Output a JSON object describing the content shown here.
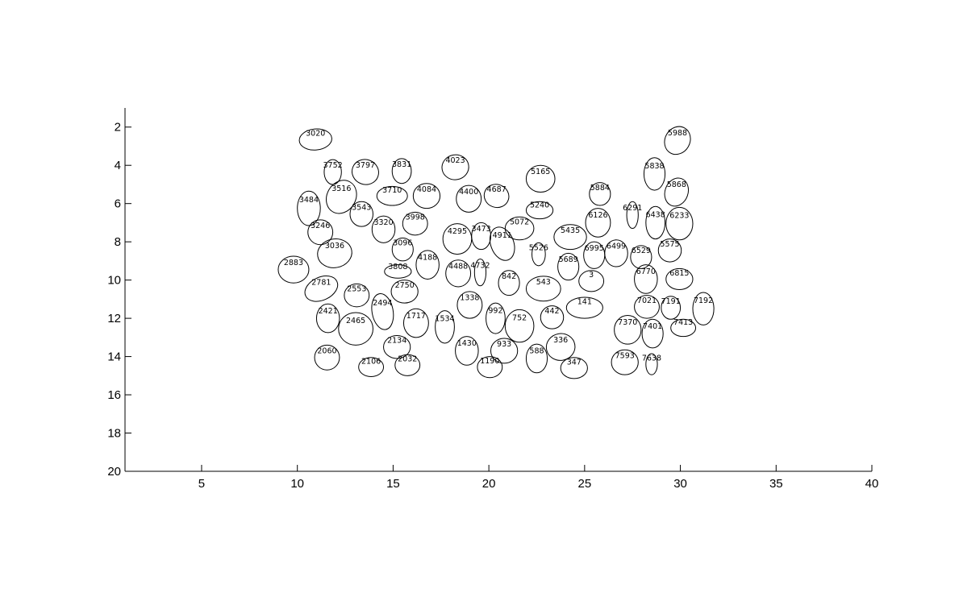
{
  "chart_data": {
    "type": "scatter",
    "title": "",
    "xlabel": "",
    "ylabel": "",
    "xlim": [
      1,
      40
    ],
    "ylim": [
      1,
      20
    ],
    "y_reversed": true,
    "grid": false,
    "x_ticks": [
      5,
      10,
      15,
      20,
      25,
      30,
      35,
      40
    ],
    "y_ticks": [
      2,
      4,
      6,
      8,
      10,
      12,
      14,
      16,
      18,
      20
    ],
    "x_tick_labels": [
      "5",
      "10",
      "15",
      "20",
      "25",
      "30",
      "35",
      "40"
    ],
    "y_tick_labels": [
      "2",
      "4",
      "6",
      "8",
      "10",
      "12",
      "14",
      "16",
      "18",
      "20"
    ],
    "ellipses": [
      {
        "label": "3020",
        "x": 10.95,
        "y": 2.65,
        "rx": 0.85,
        "ry": 0.55,
        "angle": -5
      },
      {
        "label": "5988",
        "x": 29.85,
        "y": 2.7,
        "rx": 0.65,
        "ry": 0.75,
        "angle": 30
      },
      {
        "label": "3752",
        "x": 11.85,
        "y": 4.35,
        "rx": 0.45,
        "ry": 0.65,
        "angle": 0
      },
      {
        "label": "3797",
        "x": 13.55,
        "y": 4.35,
        "rx": 0.7,
        "ry": 0.65,
        "angle": 20
      },
      {
        "label": "3831",
        "x": 15.45,
        "y": 4.3,
        "rx": 0.5,
        "ry": 0.65,
        "angle": 0
      },
      {
        "label": "4023",
        "x": 18.25,
        "y": 4.1,
        "rx": 0.7,
        "ry": 0.65,
        "angle": -10
      },
      {
        "label": "5165",
        "x": 22.7,
        "y": 4.7,
        "rx": 0.75,
        "ry": 0.7,
        "angle": 0
      },
      {
        "label": "5838",
        "x": 28.65,
        "y": 4.45,
        "rx": 0.55,
        "ry": 0.85,
        "angle": 0
      },
      {
        "label": "3516",
        "x": 12.3,
        "y": 5.65,
        "rx": 0.75,
        "ry": 0.9,
        "angle": 30
      },
      {
        "label": "3710",
        "x": 14.95,
        "y": 5.6,
        "rx": 0.8,
        "ry": 0.5,
        "angle": 0
      },
      {
        "label": "4084",
        "x": 16.75,
        "y": 5.6,
        "rx": 0.7,
        "ry": 0.65,
        "angle": 0
      },
      {
        "label": "4400",
        "x": 18.95,
        "y": 5.75,
        "rx": 0.65,
        "ry": 0.7,
        "angle": 0
      },
      {
        "label": "4687",
        "x": 20.4,
        "y": 5.6,
        "rx": 0.65,
        "ry": 0.6,
        "angle": 20
      },
      {
        "label": "5884",
        "x": 25.8,
        "y": 5.5,
        "rx": 0.55,
        "ry": 0.6,
        "angle": 0
      },
      {
        "label": "5868",
        "x": 29.8,
        "y": 5.4,
        "rx": 0.6,
        "ry": 0.75,
        "angle": 20
      },
      {
        "label": "3484",
        "x": 10.6,
        "y": 6.25,
        "rx": 0.6,
        "ry": 0.9,
        "angle": 0
      },
      {
        "label": "3543",
        "x": 13.35,
        "y": 6.55,
        "rx": 0.6,
        "ry": 0.65,
        "angle": 0
      },
      {
        "label": "5240",
        "x": 22.65,
        "y": 6.35,
        "rx": 0.7,
        "ry": 0.45,
        "angle": 0
      },
      {
        "label": "6291",
        "x": 27.5,
        "y": 6.6,
        "rx": 0.3,
        "ry": 0.7,
        "angle": 0
      },
      {
        "label": "6126",
        "x": 25.7,
        "y": 7.0,
        "rx": 0.65,
        "ry": 0.75,
        "angle": 0
      },
      {
        "label": "6438",
        "x": 28.7,
        "y": 7.0,
        "rx": 0.5,
        "ry": 0.85,
        "angle": 0
      },
      {
        "label": "6233",
        "x": 29.95,
        "y": 7.05,
        "rx": 0.7,
        "ry": 0.85,
        "angle": 0
      },
      {
        "label": "3998",
        "x": 16.15,
        "y": 7.05,
        "rx": 0.65,
        "ry": 0.6,
        "angle": 0
      },
      {
        "label": "3320",
        "x": 14.5,
        "y": 7.35,
        "rx": 0.6,
        "ry": 0.7,
        "angle": 0
      },
      {
        "label": "5072",
        "x": 21.6,
        "y": 7.3,
        "rx": 0.75,
        "ry": 0.6,
        "angle": 0
      },
      {
        "label": "3246",
        "x": 11.2,
        "y": 7.5,
        "rx": 0.65,
        "ry": 0.65,
        "angle": 0
      },
      {
        "label": "4295",
        "x": 18.35,
        "y": 7.85,
        "rx": 0.75,
        "ry": 0.8,
        "angle": 0
      },
      {
        "label": "3473",
        "x": 19.6,
        "y": 7.7,
        "rx": 0.5,
        "ry": 0.7,
        "angle": 0
      },
      {
        "label": "5435",
        "x": 24.25,
        "y": 7.75,
        "rx": 0.85,
        "ry": 0.65,
        "angle": 0
      },
      {
        "label": "4911",
        "x": 20.7,
        "y": 8.1,
        "rx": 0.6,
        "ry": 0.9,
        "angle": -20
      },
      {
        "label": "5575",
        "x": 29.45,
        "y": 8.45,
        "rx": 0.6,
        "ry": 0.6,
        "angle": 0
      },
      {
        "label": "3096",
        "x": 15.5,
        "y": 8.4,
        "rx": 0.55,
        "ry": 0.6,
        "angle": 0
      },
      {
        "label": "3036",
        "x": 11.95,
        "y": 8.6,
        "rx": 0.9,
        "ry": 0.75,
        "angle": -10
      },
      {
        "label": "5526",
        "x": 22.6,
        "y": 8.65,
        "rx": 0.35,
        "ry": 0.6,
        "angle": 0
      },
      {
        "label": "6995",
        "x": 25.5,
        "y": 8.7,
        "rx": 0.55,
        "ry": 0.7,
        "angle": 0
      },
      {
        "label": "6499",
        "x": 26.65,
        "y": 8.6,
        "rx": 0.6,
        "ry": 0.7,
        "angle": 0
      },
      {
        "label": "6529",
        "x": 27.95,
        "y": 8.8,
        "rx": 0.55,
        "ry": 0.6,
        "angle": 0
      },
      {
        "label": "4188",
        "x": 16.8,
        "y": 9.2,
        "rx": 0.6,
        "ry": 0.75,
        "angle": 0
      },
      {
        "label": "5689",
        "x": 24.15,
        "y": 9.3,
        "rx": 0.55,
        "ry": 0.7,
        "angle": 0
      },
      {
        "label": "3808",
        "x": 15.25,
        "y": 9.55,
        "rx": 0.7,
        "ry": 0.35,
        "angle": 0
      },
      {
        "label": "4488",
        "x": 18.4,
        "y": 9.65,
        "rx": 0.65,
        "ry": 0.7,
        "angle": 0
      },
      {
        "label": "4732",
        "x": 19.55,
        "y": 9.6,
        "rx": 0.3,
        "ry": 0.7,
        "angle": 0
      },
      {
        "label": "2883",
        "x": 9.8,
        "y": 9.45,
        "rx": 0.8,
        "ry": 0.7,
        "angle": 0
      },
      {
        "label": "6770",
        "x": 28.2,
        "y": 9.95,
        "rx": 0.6,
        "ry": 0.75,
        "angle": 0
      },
      {
        "label": "6815",
        "x": 29.95,
        "y": 9.95,
        "rx": 0.7,
        "ry": 0.55,
        "angle": 0
      },
      {
        "label": "842",
        "x": 21.05,
        "y": 10.15,
        "rx": 0.55,
        "ry": 0.65,
        "angle": 0
      },
      {
        "label": "3",
        "x": 25.35,
        "y": 10.05,
        "rx": 0.65,
        "ry": 0.55,
        "angle": 0
      },
      {
        "label": "2781",
        "x": 11.25,
        "y": 10.45,
        "rx": 0.9,
        "ry": 0.6,
        "angle": -25
      },
      {
        "label": "543",
        "x": 22.85,
        "y": 10.45,
        "rx": 0.9,
        "ry": 0.65,
        "angle": 0
      },
      {
        "label": "2553",
        "x": 13.1,
        "y": 10.8,
        "rx": 0.65,
        "ry": 0.6,
        "angle": 0
      },
      {
        "label": "2750",
        "x": 15.6,
        "y": 10.6,
        "rx": 0.7,
        "ry": 0.6,
        "angle": 0
      },
      {
        "label": "1338",
        "x": 19.0,
        "y": 11.3,
        "rx": 0.65,
        "ry": 0.7,
        "angle": 0
      },
      {
        "label": "141",
        "x": 25.0,
        "y": 11.45,
        "rx": 0.95,
        "ry": 0.55,
        "angle": 0
      },
      {
        "label": "7021",
        "x": 28.25,
        "y": 11.4,
        "rx": 0.65,
        "ry": 0.6,
        "angle": 0
      },
      {
        "label": "7191",
        "x": 29.5,
        "y": 11.45,
        "rx": 0.5,
        "ry": 0.6,
        "angle": 0
      },
      {
        "label": "7192",
        "x": 31.2,
        "y": 11.5,
        "rx": 0.55,
        "ry": 0.85,
        "angle": 0
      },
      {
        "label": "2494",
        "x": 14.45,
        "y": 11.65,
        "rx": 0.55,
        "ry": 0.95,
        "angle": -10
      },
      {
        "label": "992",
        "x": 20.35,
        "y": 12.0,
        "rx": 0.5,
        "ry": 0.8,
        "angle": 0
      },
      {
        "label": "442",
        "x": 23.3,
        "y": 11.95,
        "rx": 0.6,
        "ry": 0.6,
        "angle": 0
      },
      {
        "label": "2421",
        "x": 11.6,
        "y": 12.0,
        "rx": 0.6,
        "ry": 0.75,
        "angle": 0
      },
      {
        "label": "1717",
        "x": 16.2,
        "y": 12.25,
        "rx": 0.65,
        "ry": 0.75,
        "angle": 0
      },
      {
        "label": "752",
        "x": 21.6,
        "y": 12.4,
        "rx": 0.75,
        "ry": 0.85,
        "angle": 0
      },
      {
        "label": "1534",
        "x": 17.7,
        "y": 12.45,
        "rx": 0.5,
        "ry": 0.85,
        "angle": 0
      },
      {
        "label": "2465",
        "x": 13.05,
        "y": 12.55,
        "rx": 0.9,
        "ry": 0.85,
        "angle": 0
      },
      {
        "label": "7370",
        "x": 27.25,
        "y": 12.6,
        "rx": 0.7,
        "ry": 0.75,
        "angle": 0
      },
      {
        "label": "7413",
        "x": 30.15,
        "y": 12.5,
        "rx": 0.65,
        "ry": 0.45,
        "angle": 0
      },
      {
        "label": "7401",
        "x": 28.55,
        "y": 12.8,
        "rx": 0.55,
        "ry": 0.75,
        "angle": 0
      },
      {
        "label": "2134",
        "x": 15.2,
        "y": 13.5,
        "rx": 0.7,
        "ry": 0.6,
        "angle": 0
      },
      {
        "label": "1430",
        "x": 18.85,
        "y": 13.7,
        "rx": 0.6,
        "ry": 0.75,
        "angle": 0
      },
      {
        "label": "933",
        "x": 20.8,
        "y": 13.7,
        "rx": 0.7,
        "ry": 0.65,
        "angle": 0
      },
      {
        "label": "336",
        "x": 23.75,
        "y": 13.5,
        "rx": 0.75,
        "ry": 0.7,
        "angle": -10
      },
      {
        "label": "2060",
        "x": 11.55,
        "y": 14.05,
        "rx": 0.65,
        "ry": 0.65,
        "angle": 0
      },
      {
        "label": "588",
        "x": 22.5,
        "y": 14.1,
        "rx": 0.55,
        "ry": 0.75,
        "angle": 0
      },
      {
        "label": "7593",
        "x": 27.1,
        "y": 14.3,
        "rx": 0.7,
        "ry": 0.65,
        "angle": 0
      },
      {
        "label": "7638",
        "x": 28.5,
        "y": 14.4,
        "rx": 0.3,
        "ry": 0.55,
        "angle": 0
      },
      {
        "label": "2106",
        "x": 13.85,
        "y": 14.55,
        "rx": 0.65,
        "ry": 0.5,
        "angle": 0
      },
      {
        "label": "2032",
        "x": 15.75,
        "y": 14.45,
        "rx": 0.65,
        "ry": 0.55,
        "angle": 0
      },
      {
        "label": "1190",
        "x": 20.05,
        "y": 14.55,
        "rx": 0.65,
        "ry": 0.55,
        "angle": 0
      },
      {
        "label": "347",
        "x": 24.45,
        "y": 14.6,
        "rx": 0.7,
        "ry": 0.55,
        "angle": 0
      }
    ]
  }
}
